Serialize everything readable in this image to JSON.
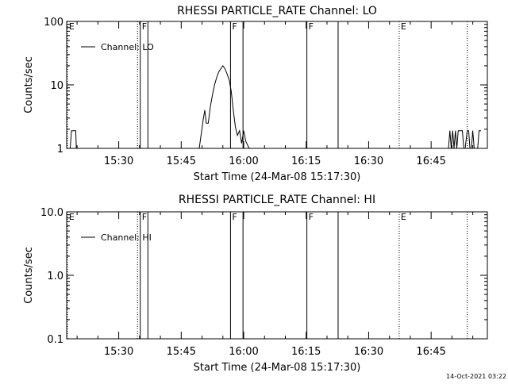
{
  "chart_data": [
    {
      "type": "line",
      "title": "RHESSI PARTICLE_RATE Channel: LO",
      "xlabel": "Start Time (24-Mar-08 15:17:30)",
      "ylabel": "Counts/sec",
      "yscale": "log",
      "ylim": [
        1,
        100
      ],
      "xlim": [
        "15:17:30",
        "16:58:30"
      ],
      "ytick_labels": [
        "1",
        "10",
        "100"
      ],
      "xtick_labels": [
        "15:30",
        "15:45",
        "16:00",
        "16:15",
        "16:30",
        "16:45"
      ],
      "legend": {
        "placement": "top-left",
        "entries": [
          "Channel: LO"
        ]
      },
      "grid": false,
      "series": [
        {
          "name": "Channel: LO",
          "x": [
            "15:18:20",
            "15:18:40",
            "15:19:00",
            "15:19:40",
            "15:19:50",
            "15:49:20",
            "15:50:20",
            "15:50:40",
            "15:51:00",
            "15:51:30",
            "15:52:00",
            "15:52:30",
            "15:53:00",
            "15:53:30",
            "15:54:00",
            "15:54:30",
            "15:55:00",
            "15:55:30",
            "15:56:00",
            "15:56:30",
            "15:57:00",
            "15:57:30",
            "15:58:00",
            "15:58:30",
            "15:59:00",
            "15:59:30",
            "16:00:00",
            "16:00:30",
            "16:01:00",
            "16:01:20",
            "16:49:10",
            "16:49:30",
            "16:49:50",
            "16:50:10",
            "16:50:30",
            "16:50:50",
            "16:51:10",
            "16:51:30",
            "16:51:50",
            "16:52:10",
            "16:52:30",
            "16:52:50",
            "16:53:10",
            "16:53:40",
            "16:54:00",
            "16:54:20",
            "16:54:40",
            "16:55:00",
            "16:55:20",
            "16:56:10",
            "16:56:30",
            "16:57:00"
          ],
          "values": [
            1,
            1.9,
            1.9,
            1.9,
            1,
            1,
            3,
            4,
            2.5,
            2.5,
            4.5,
            7,
            10,
            13,
            16,
            18,
            20,
            18,
            15,
            12,
            8,
            4,
            2.2,
            1.6,
            1.9,
            1.2,
            1.9,
            1.3,
            1.1,
            1,
            1,
            1.9,
            1,
            1.9,
            1,
            1.9,
            1,
            1.9,
            1.9,
            1.9,
            1.9,
            1,
            1,
            1.9,
            1.9,
            1,
            1,
            1.9,
            1,
            1,
            1.9,
            1.9
          ]
        }
      ],
      "markers": [
        {
          "time": "15:17:40",
          "label": "E",
          "style": "dotted"
        },
        {
          "time": "15:34:30",
          "label": "",
          "style": "dotted"
        },
        {
          "time": "15:35:10",
          "label": "F",
          "style": "solid"
        },
        {
          "time": "15:37:00",
          "label": "",
          "style": "solid"
        },
        {
          "time": "15:56:50",
          "label": "F",
          "style": "solid"
        },
        {
          "time": "15:59:50",
          "label": "",
          "style": "solid"
        },
        {
          "time": "16:15:10",
          "label": "F",
          "style": "solid"
        },
        {
          "time": "16:22:40",
          "label": "",
          "style": "solid"
        },
        {
          "time": "16:37:20",
          "label": "E",
          "style": "dotted"
        },
        {
          "time": "16:53:40",
          "label": "",
          "style": "dotted"
        }
      ]
    },
    {
      "type": "line",
      "title": "RHESSI PARTICLE_RATE Channel: HI",
      "xlabel": "Start Time (24-Mar-08 15:17:30)",
      "ylabel": "Counts/sec",
      "yscale": "log",
      "ylim": [
        0.1,
        10
      ],
      "xlim": [
        "15:17:30",
        "16:58:30"
      ],
      "ytick_labels": [
        "0.1",
        "1.0",
        "10.0"
      ],
      "xtick_labels": [
        "15:30",
        "15:45",
        "16:00",
        "16:15",
        "16:30",
        "16:45"
      ],
      "legend": {
        "placement": "top-left",
        "entries": [
          "Channel: HI"
        ]
      },
      "grid": false,
      "series": [
        {
          "name": "Channel: HI",
          "x": [],
          "values": []
        }
      ],
      "markers": [
        {
          "time": "15:17:40",
          "label": "E",
          "style": "dotted"
        },
        {
          "time": "15:34:30",
          "label": "",
          "style": "dotted"
        },
        {
          "time": "15:35:10",
          "label": "F",
          "style": "solid"
        },
        {
          "time": "15:37:00",
          "label": "",
          "style": "solid"
        },
        {
          "time": "15:56:50",
          "label": "F",
          "style": "solid"
        },
        {
          "time": "15:59:50",
          "label": "",
          "style": "solid"
        },
        {
          "time": "16:15:10",
          "label": "F",
          "style": "solid"
        },
        {
          "time": "16:22:40",
          "label": "",
          "style": "solid"
        },
        {
          "time": "16:37:20",
          "label": "E",
          "style": "dotted"
        },
        {
          "time": "16:53:40",
          "label": "",
          "style": "dotted"
        }
      ]
    }
  ],
  "footer": {
    "timestamp": "14-Oct-2021 03:22"
  }
}
